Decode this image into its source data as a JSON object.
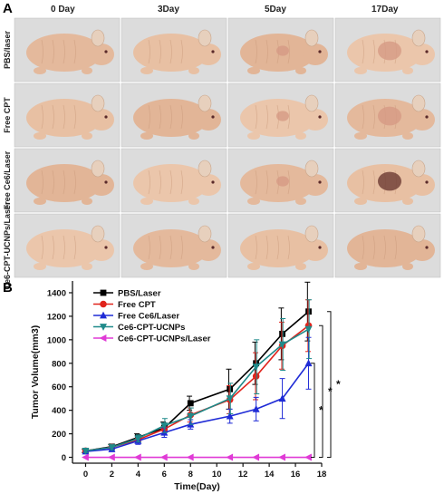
{
  "panel_a": {
    "letter": "A",
    "columns": [
      "0 Day",
      "3Day",
      "5Day",
      "17Day"
    ],
    "rows": [
      "PBS/laser",
      "Free CPT",
      "Free Ce6/Laser",
      "Ce6-CPT-UCNPs/Laser"
    ]
  },
  "panel_b": {
    "letter": "B"
  },
  "colors": {
    "PBS/Laser": "#000000",
    "Free CPT": "#e0231b",
    "Free Ce6/Laser": "#1f2bd6",
    "Ce6-CPT-UCNPs": "#1f8a8a",
    "Ce6-CPT-UCNPs/Laser": "#e03ad6",
    "photo_bg": "#dcdcdc",
    "mouse_skin": "#e9c2a6"
  },
  "chart_data": {
    "type": "line",
    "xlabel": "Time(Day)",
    "ylabel": "Tumor Volume(mm3)",
    "xlim": [
      -1,
      18
    ],
    "ylim": [
      -50,
      1500
    ],
    "xticks": [
      0,
      2,
      4,
      6,
      8,
      10,
      12,
      14,
      16,
      18
    ],
    "yticks": [
      0,
      200,
      400,
      600,
      800,
      1000,
      1200,
      1400
    ],
    "x": [
      0,
      2,
      4,
      6,
      8,
      11,
      13,
      15,
      17
    ],
    "legend_position": "top-left",
    "series": [
      {
        "name": "PBS/Laser",
        "marker": "square",
        "values": [
          55,
          90,
          170,
          250,
          460,
          580,
          800,
          1050,
          1240
        ],
        "errors": [
          15,
          20,
          30,
          50,
          60,
          170,
          180,
          220,
          250
        ]
      },
      {
        "name": "Free CPT",
        "marker": "circle",
        "values": [
          55,
          85,
          150,
          240,
          360,
          490,
          690,
          950,
          1120
        ],
        "errors": [
          15,
          20,
          30,
          50,
          60,
          120,
          200,
          200,
          220
        ]
      },
      {
        "name": "Free Ce6/Laser",
        "marker": "triangle-up",
        "values": [
          50,
          70,
          140,
          210,
          280,
          350,
          410,
          500,
          800
        ],
        "errors": [
          15,
          20,
          30,
          40,
          40,
          60,
          100,
          170,
          220
        ]
      },
      {
        "name": "Ce6-CPT-UCNPs",
        "marker": "triangle-down",
        "values": [
          55,
          85,
          160,
          270,
          350,
          500,
          770,
          960,
          1090
        ],
        "errors": [
          15,
          20,
          30,
          60,
          70,
          130,
          230,
          220,
          250
        ]
      },
      {
        "name": "Ce6-CPT-UCNPs/Laser",
        "marker": "triangle-left",
        "values": [
          0,
          0,
          0,
          0,
          0,
          0,
          0,
          0,
          0
        ],
        "errors": [
          0,
          0,
          0,
          0,
          0,
          0,
          0,
          0,
          0
        ]
      }
    ],
    "annotations": [
      "*",
      "*",
      "*"
    ]
  }
}
